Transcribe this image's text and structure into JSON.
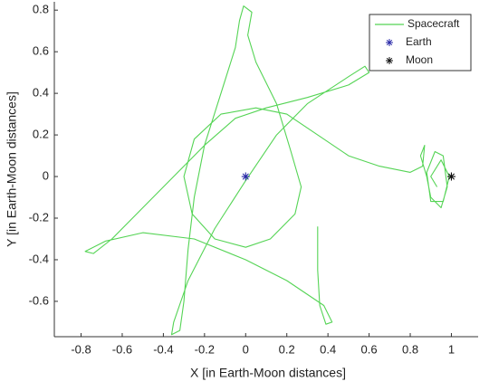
{
  "chart_data": {
    "type": "line",
    "xlabel": "X [in Earth-Moon distances]",
    "ylabel": "Y [in Earth-Moon distances]",
    "xlim": [
      -0.93,
      1.13
    ],
    "ylim": [
      -0.77,
      0.84
    ],
    "xticks": [
      -0.8,
      -0.6,
      -0.4,
      -0.2,
      0,
      0.2,
      0.4,
      0.6,
      0.8,
      1
    ],
    "yticks": [
      -0.6,
      -0.4,
      -0.2,
      0,
      0.2,
      0.4,
      0.6,
      0.8
    ],
    "grid": false,
    "legend": "upper right",
    "series": [
      {
        "name": "Spacecraft",
        "color": "#55d455",
        "marker": "none",
        "x": [
          0.35,
          0.35,
          0.36,
          0.39,
          0.42,
          0.38,
          0.2,
          0.0,
          -0.25,
          -0.5,
          -0.68,
          -0.78,
          -0.74,
          -0.65,
          -0.5,
          -0.35,
          -0.2,
          -0.05,
          0.1,
          0.3,
          0.5,
          0.6,
          0.58,
          0.5,
          0.3,
          0.15,
          0.0,
          -0.15,
          -0.28,
          -0.35,
          -0.36,
          -0.32,
          -0.3,
          -0.28,
          -0.25,
          -0.2,
          -0.12,
          -0.05,
          -0.03,
          -0.01,
          0.03,
          0.01,
          0.05,
          0.15,
          0.22,
          0.27,
          0.24,
          0.12,
          0.0,
          -0.15,
          -0.26,
          -0.3,
          -0.25,
          -0.12,
          0.05,
          0.2,
          0.35,
          0.5,
          0.65,
          0.8,
          0.86,
          0.87,
          0.85,
          0.88,
          0.9,
          0.95,
          0.98,
          0.96,
          0.92,
          0.88,
          0.9,
          0.96,
          0.99,
          0.95,
          0.9,
          0.93
        ],
        "values": [
          -0.24,
          -0.45,
          -0.62,
          -0.71,
          -0.7,
          -0.62,
          -0.5,
          -0.4,
          -0.3,
          -0.27,
          -0.31,
          -0.36,
          -0.37,
          -0.3,
          -0.15,
          0.0,
          0.15,
          0.28,
          0.33,
          0.38,
          0.44,
          0.5,
          0.53,
          0.48,
          0.35,
          0.2,
          -0.02,
          -0.25,
          -0.5,
          -0.7,
          -0.76,
          -0.74,
          -0.6,
          -0.35,
          -0.1,
          0.15,
          0.4,
          0.62,
          0.75,
          0.82,
          0.79,
          0.68,
          0.55,
          0.35,
          0.12,
          -0.05,
          -0.18,
          -0.3,
          -0.34,
          -0.3,
          -0.18,
          0.0,
          0.18,
          0.3,
          0.33,
          0.3,
          0.2,
          0.1,
          0.05,
          0.02,
          0.05,
          0.15,
          0.1,
          0.0,
          -0.1,
          -0.15,
          -0.05,
          0.1,
          0.12,
          0.02,
          -0.12,
          -0.12,
          0.0,
          0.08,
          0.0,
          -0.05
        ]
      },
      {
        "name": "Earth",
        "color": "#2a2aa8",
        "marker": "asterisk",
        "x": [
          0
        ],
        "values": [
          0
        ]
      },
      {
        "name": "Moon",
        "color": "#111111",
        "marker": "asterisk",
        "x": [
          1
        ],
        "values": [
          0
        ]
      }
    ]
  }
}
